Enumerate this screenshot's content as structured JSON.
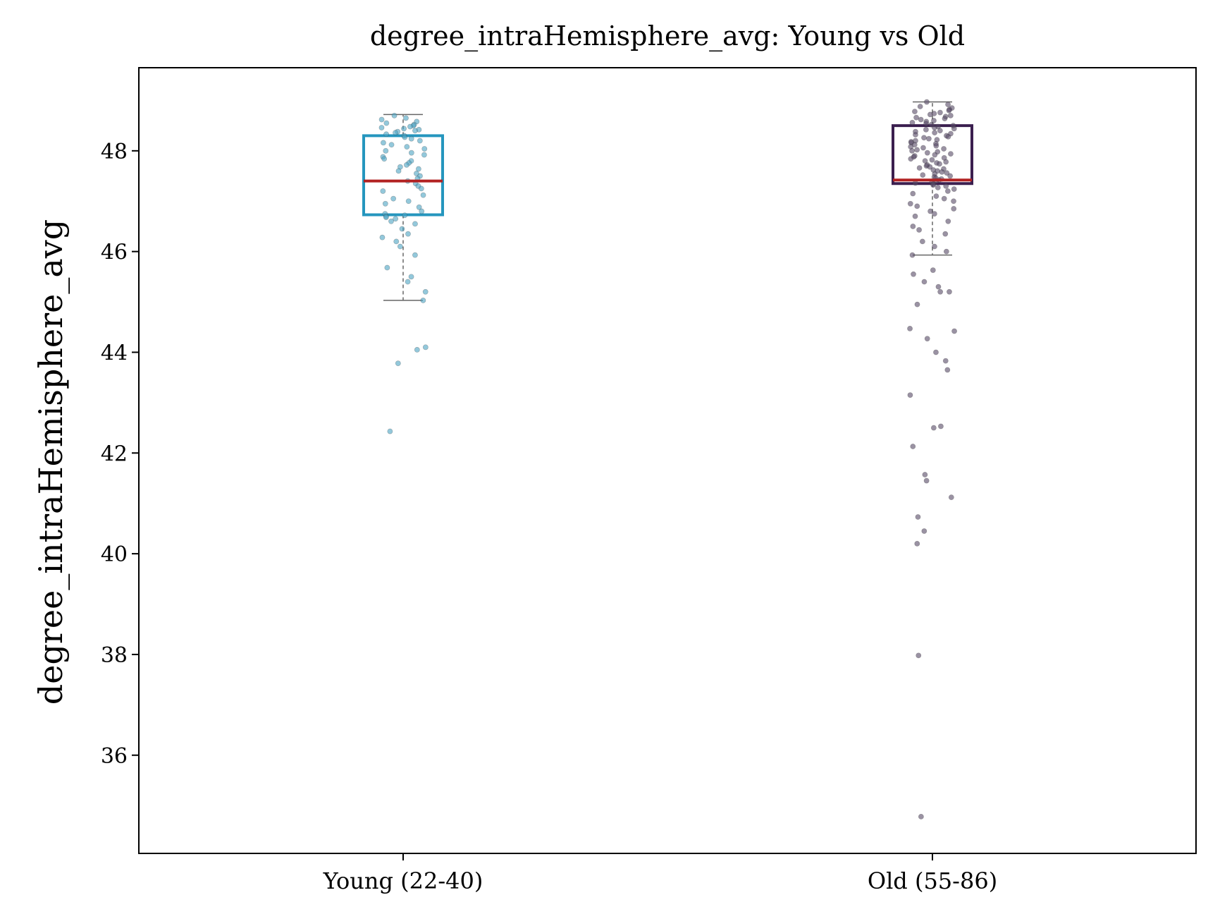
{
  "chart_data": {
    "type": "box",
    "title": "degree_intraHemisphere_avg: Young vs Old",
    "xlabel": "",
    "ylabel": "degree_intraHemisphere_avg",
    "ylim": [
      34.05,
      49.65
    ],
    "yticks": [
      36,
      38,
      40,
      42,
      44,
      46,
      48
    ],
    "grid": false,
    "categories": [
      "Young (22-40)",
      "Old (55-86)"
    ],
    "series": [
      {
        "name": "Young (22-40)",
        "color": "#2596be",
        "point_color": "#4ba3c3",
        "q1": 46.73,
        "median": 47.4,
        "q3": 48.3,
        "whisker_low": 45.03,
        "whisker_high": 48.72,
        "points": [
          48.7,
          48.65,
          48.62,
          48.58,
          48.55,
          48.52,
          48.5,
          48.48,
          48.46,
          48.44,
          48.42,
          48.4,
          48.38,
          48.36,
          48.33,
          48.3,
          48.27,
          48.24,
          48.2,
          48.16,
          48.12,
          48.08,
          48.04,
          48.0,
          47.96,
          47.92,
          47.88,
          47.84,
          47.8,
          47.76,
          47.72,
          47.68,
          47.64,
          47.6,
          47.55,
          47.5,
          47.45,
          47.4,
          47.35,
          47.3,
          47.25,
          47.2,
          47.12,
          47.05,
          47.0,
          46.95,
          46.88,
          46.8,
          46.75,
          46.72,
          46.7,
          46.68,
          46.65,
          46.6,
          46.55,
          46.45,
          46.35,
          46.28,
          46.2,
          46.1,
          45.93,
          45.68,
          45.5,
          45.4,
          45.2,
          45.03,
          44.1,
          44.05,
          43.78,
          42.43
        ]
      },
      {
        "name": "Old (55-86)",
        "color": "#3b1f4f",
        "point_color": "#574a66",
        "q1": 47.35,
        "median": 47.42,
        "q3": 48.5,
        "whisker_low": 45.93,
        "whisker_high": 48.97,
        "points": [
          48.97,
          48.92,
          48.88,
          48.85,
          48.82,
          48.8,
          48.78,
          48.76,
          48.74,
          48.72,
          48.7,
          48.68,
          48.66,
          48.64,
          48.62,
          48.6,
          48.58,
          48.56,
          48.54,
          48.52,
          48.5,
          48.48,
          48.46,
          48.44,
          48.42,
          48.4,
          48.38,
          48.36,
          48.34,
          48.32,
          48.3,
          48.28,
          48.26,
          48.24,
          48.22,
          48.2,
          48.18,
          48.16,
          48.14,
          48.12,
          48.1,
          48.08,
          48.06,
          48.04,
          48.02,
          48.0,
          47.98,
          47.96,
          47.94,
          47.92,
          47.9,
          47.88,
          47.86,
          47.84,
          47.82,
          47.8,
          47.78,
          47.76,
          47.74,
          47.72,
          47.7,
          47.68,
          47.66,
          47.64,
          47.62,
          47.6,
          47.58,
          47.56,
          47.54,
          47.52,
          47.5,
          47.48,
          47.46,
          47.44,
          47.42,
          47.4,
          47.38,
          47.36,
          47.34,
          47.32,
          47.3,
          47.27,
          47.24,
          47.2,
          47.15,
          47.1,
          47.05,
          47.0,
          46.95,
          46.9,
          46.85,
          46.8,
          46.75,
          46.7,
          46.6,
          46.5,
          46.43,
          46.35,
          46.2,
          46.1,
          46.0,
          45.93,
          45.63,
          45.55,
          45.4,
          45.3,
          45.2,
          45.2,
          44.95,
          44.47,
          44.42,
          44.27,
          44.0,
          43.83,
          43.65,
          43.15,
          42.53,
          42.5,
          42.13,
          41.57,
          41.45,
          41.12,
          40.73,
          40.45,
          40.2,
          37.98,
          34.78
        ]
      }
    ],
    "colors": {
      "median": "#b22222",
      "whisker": "#666666"
    }
  }
}
